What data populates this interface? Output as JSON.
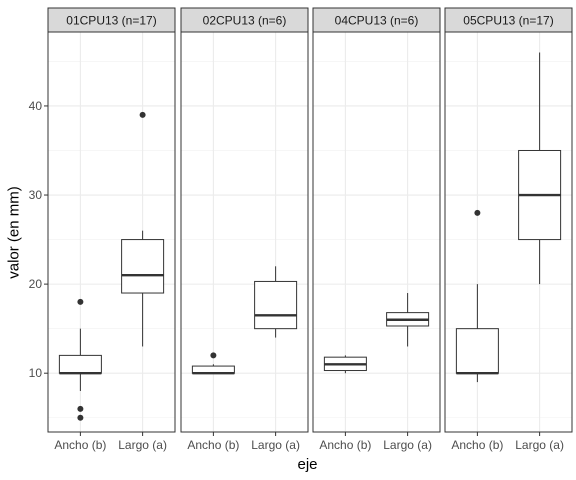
{
  "chart_data": {
    "type": "boxplot",
    "xlabel": "eje",
    "ylabel": "valor (en mm)",
    "ylim": [
      3.4,
      48.3
    ],
    "y_ticks": [
      10,
      20,
      30,
      40
    ],
    "grid": true,
    "categories": [
      "Ancho (b)",
      "Largo (a)"
    ],
    "panels": [
      {
        "title": "01CPU13 (n=17)",
        "boxes": [
          {
            "category": "Ancho (b)",
            "lower_whisker": 8,
            "q1": 10,
            "median": 10,
            "q3": 12,
            "upper_whisker": 15,
            "outliers": [
              18,
              6,
              5
            ]
          },
          {
            "category": "Largo (a)",
            "lower_whisker": 13,
            "q1": 19,
            "median": 21,
            "q3": 25,
            "upper_whisker": 26,
            "outliers": [
              39
            ]
          }
        ]
      },
      {
        "title": "02CPU13 (n=6)",
        "boxes": [
          {
            "category": "Ancho (b)",
            "lower_whisker": 10,
            "q1": 10,
            "median": 10,
            "q3": 10.8,
            "upper_whisker": 11,
            "outliers": [
              12
            ]
          },
          {
            "category": "Largo (a)",
            "lower_whisker": 14,
            "q1": 15,
            "median": 16.5,
            "q3": 20.3,
            "upper_whisker": 22,
            "outliers": []
          }
        ]
      },
      {
        "title": "04CPU13 (n=6)",
        "boxes": [
          {
            "category": "Ancho (b)",
            "lower_whisker": 10,
            "q1": 10.3,
            "median": 11,
            "q3": 11.8,
            "upper_whisker": 12,
            "outliers": []
          },
          {
            "category": "Largo (a)",
            "lower_whisker": 13,
            "q1": 15.3,
            "median": 16,
            "q3": 16.8,
            "upper_whisker": 19,
            "outliers": []
          }
        ]
      },
      {
        "title": "05CPU13 (n=17)",
        "boxes": [
          {
            "category": "Ancho (b)",
            "lower_whisker": 9,
            "q1": 10,
            "median": 10,
            "q3": 15,
            "upper_whisker": 20,
            "outliers": [
              28
            ]
          },
          {
            "category": "Largo (a)",
            "lower_whisker": 20,
            "q1": 25,
            "median": 30,
            "q3": 35,
            "upper_whisker": 46,
            "outliers": []
          }
        ]
      }
    ]
  }
}
